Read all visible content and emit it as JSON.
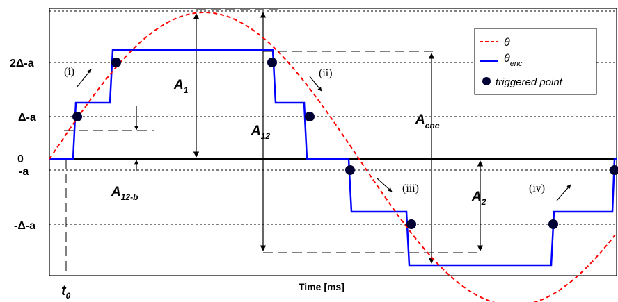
{
  "y_axis_labels": {
    "two_delta_minus_a": "2Δ-a",
    "delta_minus_a": "Δ-a",
    "zero": "0",
    "minus_a": "-a",
    "minus_delta_minus_a": "-Δ-a"
  },
  "x_axis_label": "Time [ms]",
  "t0": {
    "base": "t",
    "sub": "0"
  },
  "amplitudes": {
    "A1": {
      "base": "A",
      "sub": "1"
    },
    "A12": {
      "base": "A",
      "sub": "12"
    },
    "A12b": {
      "base": "A",
      "sub": "12-b"
    },
    "A2": {
      "base": "A",
      "sub": "2"
    },
    "Aenc": {
      "base": "A",
      "sub": "enc"
    }
  },
  "phases": [
    "(i)",
    "(ii)",
    "(iii)",
    "(iv)"
  ],
  "legend": {
    "theta": "θ",
    "theta_enc": {
      "base": "θ",
      "sub": "enc"
    },
    "triggered": "triggered point"
  },
  "colors": {
    "theta": "#ff0000",
    "theta_enc": "#0000ff",
    "triggered": "#000033"
  }
}
